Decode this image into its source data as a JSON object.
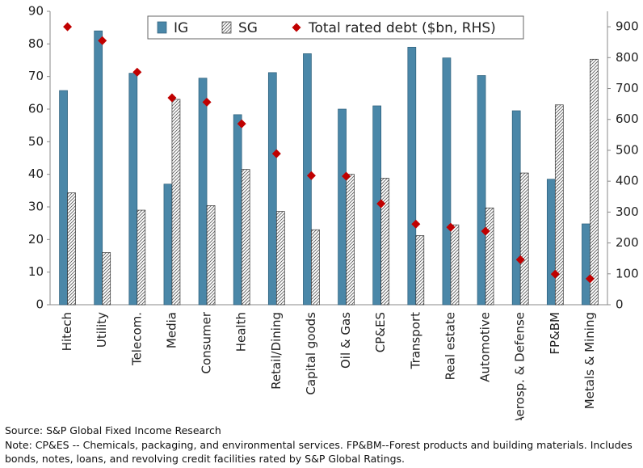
{
  "chart_data": {
    "type": "bar",
    "categories": [
      "Hitech",
      "Utility",
      "Telecom.",
      "Media",
      "Consumer",
      "Health",
      "Retail/Dining",
      "Capital goods",
      "Oil & Gas",
      "CP&ES",
      "Transport",
      "Real estate",
      "Automotive",
      "Aerosp. & Defense",
      "FP&BM",
      "Metals & Mining"
    ],
    "series": [
      {
        "name": "IG",
        "type": "bar",
        "color": "#4a87a8",
        "values": [
          65.7,
          84,
          71,
          37,
          69.5,
          58.3,
          71.2,
          77,
          60,
          61,
          79,
          75.7,
          70.3,
          59.5,
          38.5,
          24.8
        ]
      },
      {
        "name": "SG",
        "type": "bar",
        "hatch": true,
        "color": "#555555",
        "values": [
          34.3,
          16,
          29,
          63,
          30.4,
          41.5,
          28.6,
          23,
          40,
          38.8,
          21.2,
          24.5,
          29.7,
          40.4,
          61.3,
          75.3
        ]
      },
      {
        "name": "Total rated debt ($bn, RHS)",
        "type": "scatter",
        "marker": "diamond",
        "color": "#c00000",
        "axis": "y2",
        "values": [
          900,
          855,
          753,
          670,
          656,
          586,
          489,
          418,
          416,
          327,
          261,
          251,
          238,
          146,
          99,
          84
        ]
      }
    ],
    "ylim": [
      0,
      90
    ],
    "yticks": [
      0,
      10,
      20,
      30,
      40,
      50,
      60,
      70,
      80,
      90
    ],
    "y2lim": [
      0,
      950
    ],
    "y2ticks": [
      0,
      100,
      200,
      300,
      400,
      500,
      600,
      700,
      800,
      900
    ],
    "legend": "top",
    "source": "Source: S&P Global Fixed Income Research",
    "note": "Note: CP&ES -- Chemicals, packaging, and environmental services. FP&BM--Forest products and building materials. Includes bonds, notes, loans, and revolving credit facilities rated by S&P Global Ratings."
  }
}
